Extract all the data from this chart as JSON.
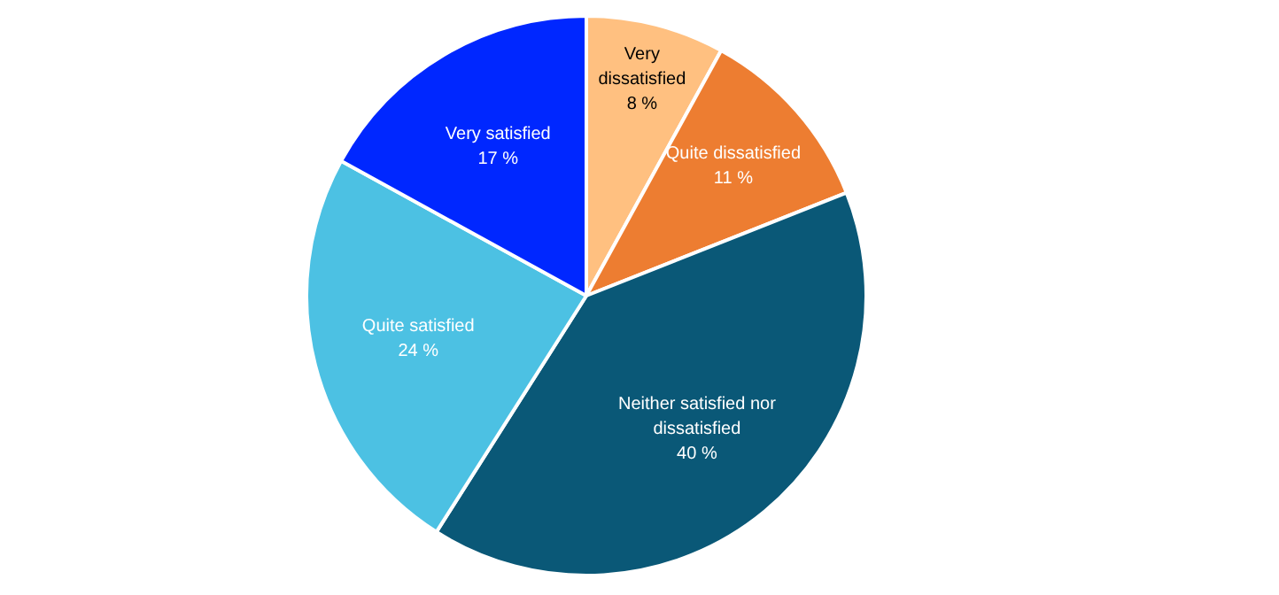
{
  "chart_data": {
    "type": "pie",
    "categories": [
      "Very dissatisfied",
      "Quite dissatisfied",
      "Neither satisfied nor dissatisfied",
      "Quite satisfied",
      "Very satisfied"
    ],
    "values": [
      8,
      11,
      40,
      24,
      17
    ],
    "colors": [
      "#ffc080",
      "#ed7d31",
      "#0a5877",
      "#4cc1e3",
      "#0027ff"
    ],
    "value_labels": [
      "8 %",
      "11 %",
      "40 %",
      "24 %",
      "17 %"
    ],
    "legend": false
  }
}
